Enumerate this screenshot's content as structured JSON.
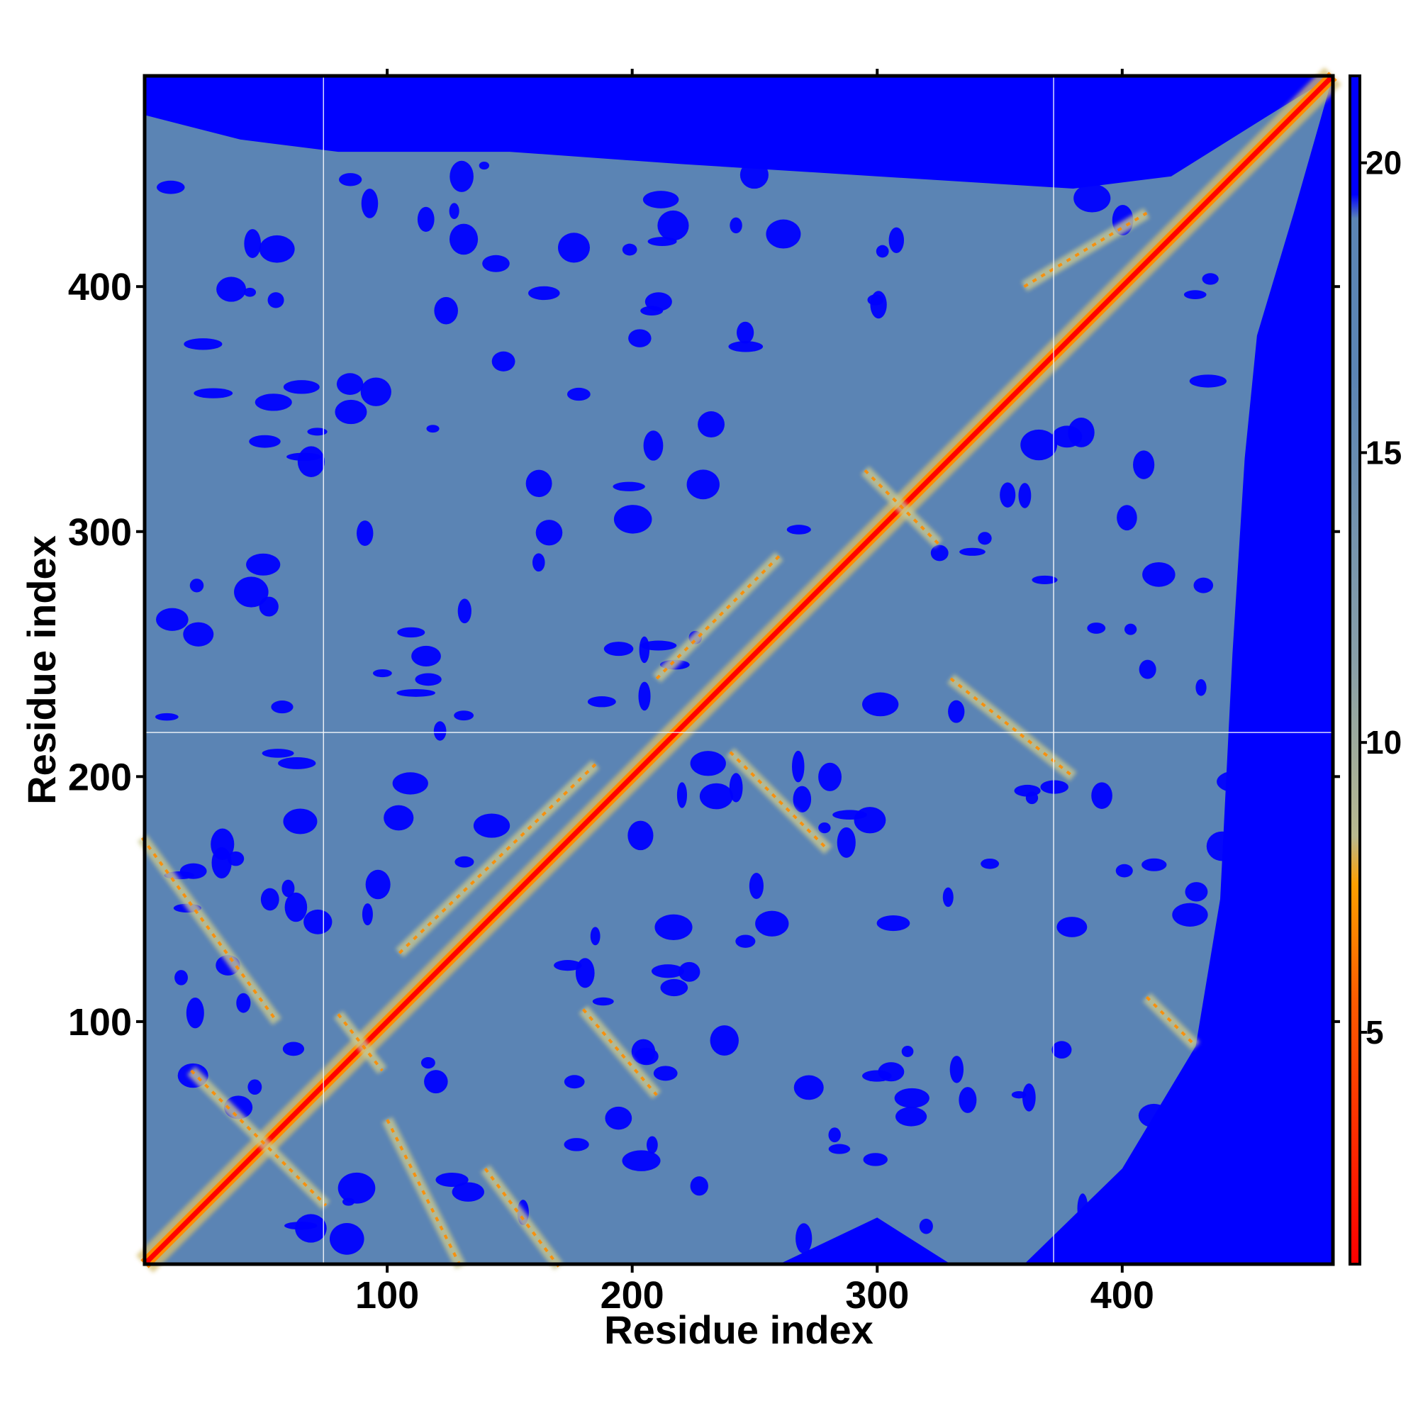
{
  "chart_data": {
    "type": "heatmap",
    "title": "",
    "xlabel": "Residue index",
    "ylabel": "Residue index",
    "xlim": [
      1,
      486
    ],
    "ylim": [
      1,
      486
    ],
    "x_ticks": [
      100,
      200,
      300,
      400
    ],
    "y_ticks": [
      100,
      200,
      300,
      400
    ],
    "colorbar": {
      "range": [
        1,
        21.5
      ],
      "ticks": [
        5,
        10,
        15,
        20
      ],
      "colors": [
        "#ff0000",
        "#ff8c00",
        "#c8c890",
        "#5b84b4",
        "#0000ff"
      ]
    },
    "background_color": "#0000ff",
    "contact_map_color": "#5b84b4",
    "diagonal_color": "#ff0000",
    "reference_lines": {
      "vertical_x": [
        74,
        372
      ],
      "horizontal_y": [
        218
      ]
    },
    "structure_features": [
      {
        "kind": "diagonal",
        "from": [
          1,
          1
        ],
        "to": [
          486,
          486
        ]
      },
      {
        "kind": "anti",
        "from": [
          20,
          80
        ],
        "to": [
          75,
          25
        ]
      },
      {
        "kind": "anti",
        "from": [
          80,
          103
        ],
        "to": [
          98,
          80
        ]
      },
      {
        "kind": "anti",
        "from": [
          295,
          325
        ],
        "to": [
          325,
          295
        ]
      },
      {
        "kind": "parallel",
        "from": [
          105,
          128
        ],
        "to": [
          185,
          205
        ]
      },
      {
        "kind": "parallel",
        "from": [
          210,
          240
        ],
        "to": [
          260,
          290
        ]
      },
      {
        "kind": "anti",
        "from": [
          180,
          105
        ],
        "to": [
          210,
          70
        ]
      },
      {
        "kind": "anti",
        "from": [
          240,
          210
        ],
        "to": [
          280,
          170
        ]
      },
      {
        "kind": "anti",
        "from": [
          330,
          240
        ],
        "to": [
          380,
          200
        ]
      },
      {
        "kind": "parallel",
        "from": [
          360,
          400
        ],
        "to": [
          410,
          430
        ]
      },
      {
        "kind": "anti",
        "from": [
          0,
          175
        ],
        "to": [
          55,
          100
        ]
      },
      {
        "kind": "anti",
        "from": [
          100,
          60
        ],
        "to": [
          130,
          0
        ]
      },
      {
        "kind": "anti",
        "from": [
          140,
          40
        ],
        "to": [
          170,
          0
        ]
      },
      {
        "kind": "anti",
        "from": [
          410,
          110
        ],
        "to": [
          430,
          90
        ]
      }
    ]
  }
}
